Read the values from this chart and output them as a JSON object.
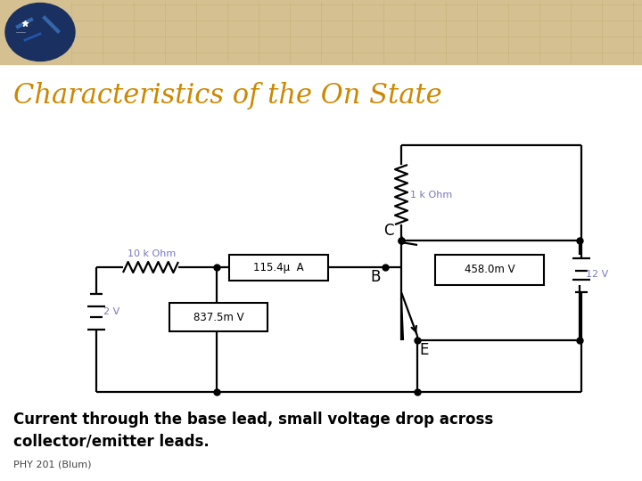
{
  "title": "Characteristics of the On State",
  "title_color": "#CC8800",
  "title_fontsize": 22,
  "bg_color": "#FFFFFF",
  "header_color": "#D4C090",
  "body_text": "Current through the base lead, small voltage drop across\ncollector/emitter leads.",
  "body_fontsize": 12,
  "credit_text": "PHY 201 (Blum)",
  "credit_fontsize": 8,
  "circuit_color": "#000000",
  "label_color": "#7777BB",
  "r1_label": "10 k Ohm",
  "r2_label": "1 k Ohm",
  "v1_label": "2 V",
  "v2_label": "12 V",
  "amp_meter_text": "115.4μ  A",
  "volt_meter1_text": "837.5m V",
  "volt_meter2_text": "458.0m V",
  "node_C_label": "C",
  "node_B_label": "B",
  "node_E_label": "E"
}
